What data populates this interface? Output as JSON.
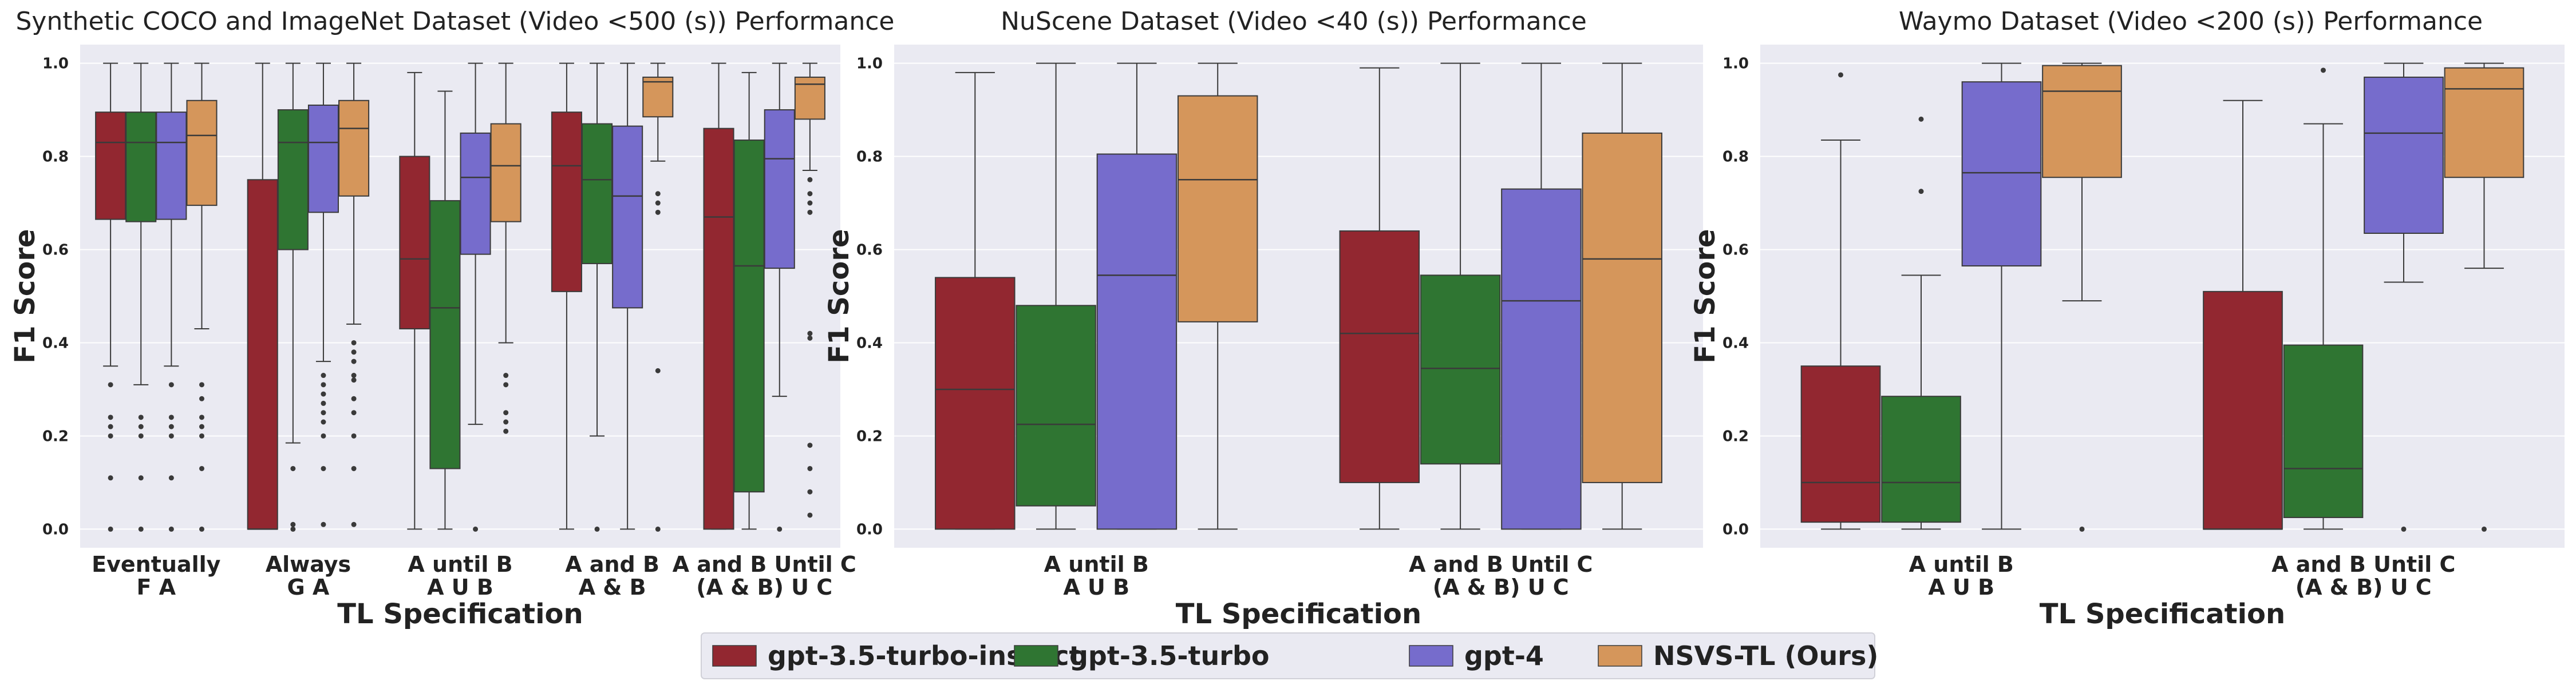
{
  "legend": {
    "entries": [
      {
        "name": "gpt-3.5-turbo-instuct",
        "color": "#922730"
      },
      {
        "name": "gpt-3.5-turbo",
        "color": "#2f7532"
      },
      {
        "name": "gpt-4",
        "color": "#766ccc"
      },
      {
        "name": "NSVS-TL (Ours)",
        "color": "#d5965b"
      }
    ],
    "placement": "bottom-center"
  },
  "chart_data": [
    {
      "type": "box",
      "title": "Synthetic COCO and ImageNet Dataset (Video <500 (s)) Performance",
      "xlabel": "TL Specification",
      "ylabel": "F1 Score",
      "ylim": [
        -0.04,
        1.04
      ],
      "yticks": [
        "0.0",
        "0.2",
        "0.4",
        "0.6",
        "0.8",
        "1.0"
      ],
      "grid": true,
      "categories": [
        [
          "Eventually",
          "F A"
        ],
        [
          "Always",
          "G A"
        ],
        [
          "A until B",
          "A U B"
        ],
        [
          "A and B",
          "A & B"
        ],
        [
          "A and B Until C",
          "(A & B) U C"
        ]
      ],
      "series": [
        {
          "name": "gpt-3.5-turbo-instuct",
          "boxes": [
            {
              "whislo": 0.35,
              "q1": 0.665,
              "med": 0.83,
              "q3": 0.895,
              "whishi": 1.0,
              "fliers": [
                0.31,
                0.24,
                0.22,
                0.2,
                0.11,
                0.0
              ]
            },
            {
              "whislo": 0.0,
              "q1": 0.0,
              "med": 0.0,
              "q3": 0.75,
              "whishi": 1.0,
              "fliers": []
            },
            {
              "whislo": 0.0,
              "q1": 0.43,
              "med": 0.58,
              "q3": 0.8,
              "whishi": 0.98,
              "fliers": []
            },
            {
              "whislo": 0.0,
              "q1": 0.51,
              "med": 0.78,
              "q3": 0.895,
              "whishi": 1.0,
              "fliers": []
            },
            {
              "whislo": 0.0,
              "q1": 0.0,
              "med": 0.67,
              "q3": 0.86,
              "whishi": 1.0,
              "fliers": []
            }
          ]
        },
        {
          "name": "gpt-3.5-turbo",
          "boxes": [
            {
              "whislo": 0.31,
              "q1": 0.66,
              "med": 0.83,
              "q3": 0.895,
              "whishi": 1.0,
              "fliers": [
                0.24,
                0.22,
                0.2,
                0.11,
                0.0
              ]
            },
            {
              "whislo": 0.185,
              "q1": 0.6,
              "med": 0.83,
              "q3": 0.9,
              "whishi": 1.0,
              "fliers": [
                0.13,
                0.0,
                0.01
              ]
            },
            {
              "whislo": 0.0,
              "q1": 0.13,
              "med": 0.475,
              "q3": 0.705,
              "whishi": 0.94,
              "fliers": []
            },
            {
              "whislo": 0.2,
              "q1": 0.57,
              "med": 0.75,
              "q3": 0.87,
              "whishi": 1.0,
              "fliers": [
                0.0
              ]
            },
            {
              "whislo": 0.0,
              "q1": 0.08,
              "med": 0.565,
              "q3": 0.835,
              "whishi": 0.98,
              "fliers": []
            }
          ]
        },
        {
          "name": "gpt-4",
          "boxes": [
            {
              "whislo": 0.35,
              "q1": 0.665,
              "med": 0.83,
              "q3": 0.895,
              "whishi": 1.0,
              "fliers": [
                0.31,
                0.24,
                0.22,
                0.2,
                0.11,
                0.0
              ]
            },
            {
              "whislo": 0.36,
              "q1": 0.68,
              "med": 0.83,
              "q3": 0.91,
              "whishi": 1.0,
              "fliers": [
                0.33,
                0.31,
                0.29,
                0.27,
                0.25,
                0.23,
                0.2,
                0.13,
                0.01
              ]
            },
            {
              "whislo": 0.225,
              "q1": 0.59,
              "med": 0.755,
              "q3": 0.85,
              "whishi": 1.0,
              "fliers": [
                0.0
              ]
            },
            {
              "whislo": 0.0,
              "q1": 0.475,
              "med": 0.715,
              "q3": 0.865,
              "whishi": 1.0,
              "fliers": []
            },
            {
              "whislo": 0.285,
              "q1": 0.56,
              "med": 0.795,
              "q3": 0.9,
              "whishi": 1.0,
              "fliers": [
                0.0
              ]
            }
          ]
        },
        {
          "name": "NSVS-TL (Ours)",
          "boxes": [
            {
              "whislo": 0.43,
              "q1": 0.695,
              "med": 0.845,
              "q3": 0.92,
              "whishi": 1.0,
              "fliers": [
                0.31,
                0.28,
                0.24,
                0.22,
                0.2,
                0.13,
                0.0
              ]
            },
            {
              "whislo": 0.44,
              "q1": 0.715,
              "med": 0.86,
              "q3": 0.92,
              "whishi": 1.0,
              "fliers": [
                0.4,
                0.38,
                0.36,
                0.33,
                0.32,
                0.28,
                0.25,
                0.2,
                0.13,
                0.01
              ]
            },
            {
              "whislo": 0.4,
              "q1": 0.66,
              "med": 0.78,
              "q3": 0.87,
              "whishi": 1.0,
              "fliers": [
                0.33,
                0.31,
                0.25,
                0.23,
                0.21
              ]
            },
            {
              "whislo": 0.79,
              "q1": 0.885,
              "med": 0.96,
              "q3": 0.97,
              "whishi": 1.0,
              "fliers": [
                0.72,
                0.7,
                0.68,
                0.34,
                0.0
              ]
            },
            {
              "whislo": 0.77,
              "q1": 0.88,
              "med": 0.955,
              "q3": 0.97,
              "whishi": 1.0,
              "fliers": [
                0.75,
                0.72,
                0.7,
                0.68,
                0.42,
                0.41,
                0.18,
                0.13,
                0.08,
                0.03
              ]
            }
          ]
        }
      ]
    },
    {
      "type": "box",
      "title": "NuScene Dataset (Video <40 (s)) Performance",
      "xlabel": "TL Specification",
      "ylabel": "F1 Score",
      "ylim": [
        -0.04,
        1.04
      ],
      "yticks": [
        "0.0",
        "0.2",
        "0.4",
        "0.6",
        "0.8",
        "1.0"
      ],
      "grid": true,
      "categories": [
        [
          "A until B",
          "A U B"
        ],
        [
          "A and B Until C",
          "(A & B) U C"
        ]
      ],
      "series": [
        {
          "name": "gpt-3.5-turbo-instuct",
          "boxes": [
            {
              "whislo": 0.0,
              "q1": 0.0,
              "med": 0.3,
              "q3": 0.54,
              "whishi": 0.98,
              "fliers": []
            },
            {
              "whislo": 0.0,
              "q1": 0.1,
              "med": 0.42,
              "q3": 0.64,
              "whishi": 0.99,
              "fliers": []
            }
          ]
        },
        {
          "name": "gpt-3.5-turbo",
          "boxes": [
            {
              "whislo": 0.0,
              "q1": 0.05,
              "med": 0.225,
              "q3": 0.48,
              "whishi": 1.0,
              "fliers": []
            },
            {
              "whislo": 0.0,
              "q1": 0.14,
              "med": 0.345,
              "q3": 0.545,
              "whishi": 1.0,
              "fliers": []
            }
          ]
        },
        {
          "name": "gpt-4",
          "boxes": [
            {
              "whislo": 0.0,
              "q1": 0.0,
              "med": 0.545,
              "q3": 0.805,
              "whishi": 1.0,
              "fliers": []
            },
            {
              "whislo": 0.0,
              "q1": 0.0,
              "med": 0.49,
              "q3": 0.73,
              "whishi": 1.0,
              "fliers": []
            }
          ]
        },
        {
          "name": "NSVS-TL (Ours)",
          "boxes": [
            {
              "whislo": 0.0,
              "q1": 0.445,
              "med": 0.75,
              "q3": 0.93,
              "whishi": 1.0,
              "fliers": []
            },
            {
              "whislo": 0.0,
              "q1": 0.1,
              "med": 0.58,
              "q3": 0.85,
              "whishi": 1.0,
              "fliers": []
            }
          ]
        }
      ]
    },
    {
      "type": "box",
      "title": "Waymo Dataset (Video <200 (s)) Performance",
      "xlabel": "TL Specification",
      "ylabel": "F1 Score",
      "ylim": [
        -0.04,
        1.04
      ],
      "yticks": [
        "0.0",
        "0.2",
        "0.4",
        "0.6",
        "0.8",
        "1.0"
      ],
      "grid": true,
      "categories": [
        [
          "A until B",
          "A U B"
        ],
        [
          "A and B Until C",
          "(A & B) U C"
        ]
      ],
      "series": [
        {
          "name": "gpt-3.5-turbo-instuct",
          "boxes": [
            {
              "whislo": 0.0,
              "q1": 0.015,
              "med": 0.1,
              "q3": 0.35,
              "whishi": 0.835,
              "fliers": [
                0.975
              ]
            },
            {
              "whislo": 0.0,
              "q1": 0.0,
              "med": 0.0,
              "q3": 0.51,
              "whishi": 0.92,
              "fliers": []
            }
          ]
        },
        {
          "name": "gpt-3.5-turbo",
          "boxes": [
            {
              "whislo": 0.0,
              "q1": 0.015,
              "med": 0.1,
              "q3": 0.285,
              "whishi": 0.545,
              "fliers": [
                0.725,
                0.88
              ]
            },
            {
              "whislo": 0.0,
              "q1": 0.025,
              "med": 0.13,
              "q3": 0.395,
              "whishi": 0.87,
              "fliers": [
                0.985
              ]
            }
          ]
        },
        {
          "name": "gpt-4",
          "boxes": [
            {
              "whislo": 0.0,
              "q1": 0.565,
              "med": 0.765,
              "q3": 0.96,
              "whishi": 1.0,
              "fliers": []
            },
            {
              "whislo": 0.53,
              "q1": 0.635,
              "med": 0.85,
              "q3": 0.97,
              "whishi": 1.0,
              "fliers": [
                0.0
              ]
            }
          ]
        },
        {
          "name": "NSVS-TL (Ours)",
          "boxes": [
            {
              "whislo": 0.49,
              "q1": 0.755,
              "med": 0.94,
              "q3": 0.995,
              "whishi": 1.0,
              "fliers": [
                0.0
              ]
            },
            {
              "whislo": 0.56,
              "q1": 0.755,
              "med": 0.945,
              "q3": 0.99,
              "whishi": 1.0,
              "fliers": [
                0.0
              ]
            }
          ]
        }
      ]
    }
  ]
}
